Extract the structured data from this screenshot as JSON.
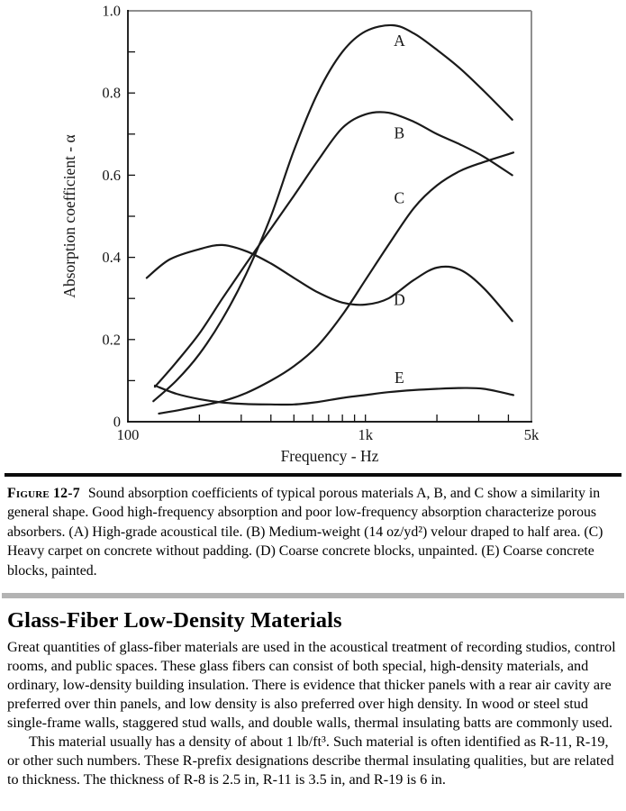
{
  "figure": {
    "caption_label": "Figure 12-7",
    "caption_text": "Sound absorption coefficients of typical porous materials A, B, and C show a similarity in general shape. Good high-frequency absorption and poor low-frequency absorption characterize porous absorbers. (A) High-grade acoustical tile. (B) Medium-weight (14 oz/yd²) velour draped to half area. (C) Heavy carpet on concrete without padding. (D) Coarse concrete blocks, unpainted. (E) Coarse concrete blocks, painted."
  },
  "section": {
    "heading": "Glass-Fiber Low-Density Materials",
    "para1": "Great quantities of glass-fiber materials are used in the acoustical treatment of recording studios, control rooms, and public spaces. These glass fibers can consist of both special, high-density materials, and ordinary, low-density building insulation. There is evidence that thicker panels with a rear air cavity are preferred over thin panels, and low density is also preferred over high density. In wood or steel stud single-frame walls, staggered stud walls, and double walls, thermal insulating batts are commonly used.",
    "para2": "This material usually has a density of about 1 lb/ft³. Such material is often identified as R-11, R-19, or other such numbers. These R-prefix designations describe thermal insulating qualities, but are related to thickness. The thickness of R-8 is 2.5 in, R-11 is 3.5 in, and R-19 is 6 in."
  },
  "chart_data": {
    "type": "line",
    "title": "",
    "xlabel": "Frequency - Hz",
    "ylabel": "Absorption coefficient - α",
    "x_scale": "log",
    "xlim": [
      100,
      5000
    ],
    "ylim": [
      0,
      1.0
    ],
    "grid": false,
    "legend_position": "inline-curve-labels",
    "x_ticks": [
      200,
      300,
      400,
      500,
      600,
      700,
      800,
      900,
      1000,
      2000,
      3000,
      4000
    ],
    "x_tick_labels": [
      {
        "value": 100,
        "label": "100"
      },
      {
        "value": 1000,
        "label": "1k"
      },
      {
        "value": 5000,
        "label": "5k"
      }
    ],
    "y_ticks": [
      0.1,
      0.2,
      0.3,
      0.4,
      0.5,
      0.6,
      0.7,
      0.8,
      0.9
    ],
    "y_tick_labels": [
      {
        "value": 0,
        "label": "0"
      },
      {
        "value": 0.2,
        "label": "0.2"
      },
      {
        "value": 0.4,
        "label": "0.4"
      },
      {
        "value": 0.6,
        "label": "0.6"
      },
      {
        "value": 0.8,
        "label": "0.8"
      },
      {
        "value": 1.0,
        "label": "1.0"
      }
    ],
    "colors": {
      "curve": "#1a1a1a",
      "axis": "#000000",
      "frame": "#8f8f8f"
    },
    "series": [
      {
        "name": "A",
        "description": "High-grade acoustical tile",
        "label_pos": {
          "x": 1390,
          "y": 0.928
        },
        "x": [
          128,
          160,
          200,
          250,
          315,
          400,
          500,
          630,
          800,
          1000,
          1300,
          1600,
          2000,
          2500,
          3150,
          4150
        ],
        "y": [
          0.05,
          0.1,
          0.165,
          0.25,
          0.36,
          0.5,
          0.66,
          0.8,
          0.9,
          0.95,
          0.965,
          0.945,
          0.905,
          0.86,
          0.805,
          0.735
        ]
      },
      {
        "name": "B",
        "description": "Medium-weight (14 oz/yd²) velour draped to half area",
        "label_pos": {
          "x": 1390,
          "y": 0.703
        },
        "x": [
          130,
          160,
          200,
          250,
          315,
          400,
          500,
          630,
          800,
          1000,
          1250,
          1600,
          2000,
          2500,
          3150,
          4150
        ],
        "y": [
          0.085,
          0.145,
          0.215,
          0.3,
          0.385,
          0.47,
          0.55,
          0.635,
          0.715,
          0.748,
          0.752,
          0.73,
          0.7,
          0.675,
          0.645,
          0.6
        ]
      },
      {
        "name": "C",
        "description": "Heavy carpet on concrete without padding",
        "label_pos": {
          "x": 1390,
          "y": 0.545
        },
        "x": [
          135,
          170,
          250,
          315,
          400,
          500,
          630,
          800,
          1000,
          1250,
          1600,
          2000,
          2500,
          3150,
          4200
        ],
        "y": [
          0.02,
          0.03,
          0.05,
          0.07,
          0.1,
          0.135,
          0.185,
          0.26,
          0.345,
          0.43,
          0.52,
          0.575,
          0.61,
          0.632,
          0.655
        ]
      },
      {
        "name": "D",
        "description": "Coarse concrete blocks, unpainted",
        "label_pos": {
          "x": 1390,
          "y": 0.297
        },
        "x": [
          120,
          150,
          200,
          250,
          315,
          400,
          500,
          630,
          800,
          1000,
          1250,
          1600,
          2000,
          2500,
          3150,
          4150
        ],
        "y": [
          0.35,
          0.395,
          0.42,
          0.43,
          0.415,
          0.385,
          0.35,
          0.315,
          0.29,
          0.285,
          0.3,
          0.345,
          0.375,
          0.37,
          0.325,
          0.245
        ]
      },
      {
        "name": "E",
        "description": "Coarse concrete blocks, painted",
        "label_pos": {
          "x": 1390,
          "y": 0.107
        },
        "x": [
          130,
          160,
          200,
          250,
          315,
          400,
          500,
          630,
          800,
          1000,
          1250,
          1600,
          2000,
          2500,
          3150,
          4200
        ],
        "y": [
          0.088,
          0.068,
          0.055,
          0.047,
          0.043,
          0.042,
          0.042,
          0.048,
          0.058,
          0.065,
          0.072,
          0.077,
          0.08,
          0.082,
          0.08,
          0.065
        ]
      }
    ]
  }
}
